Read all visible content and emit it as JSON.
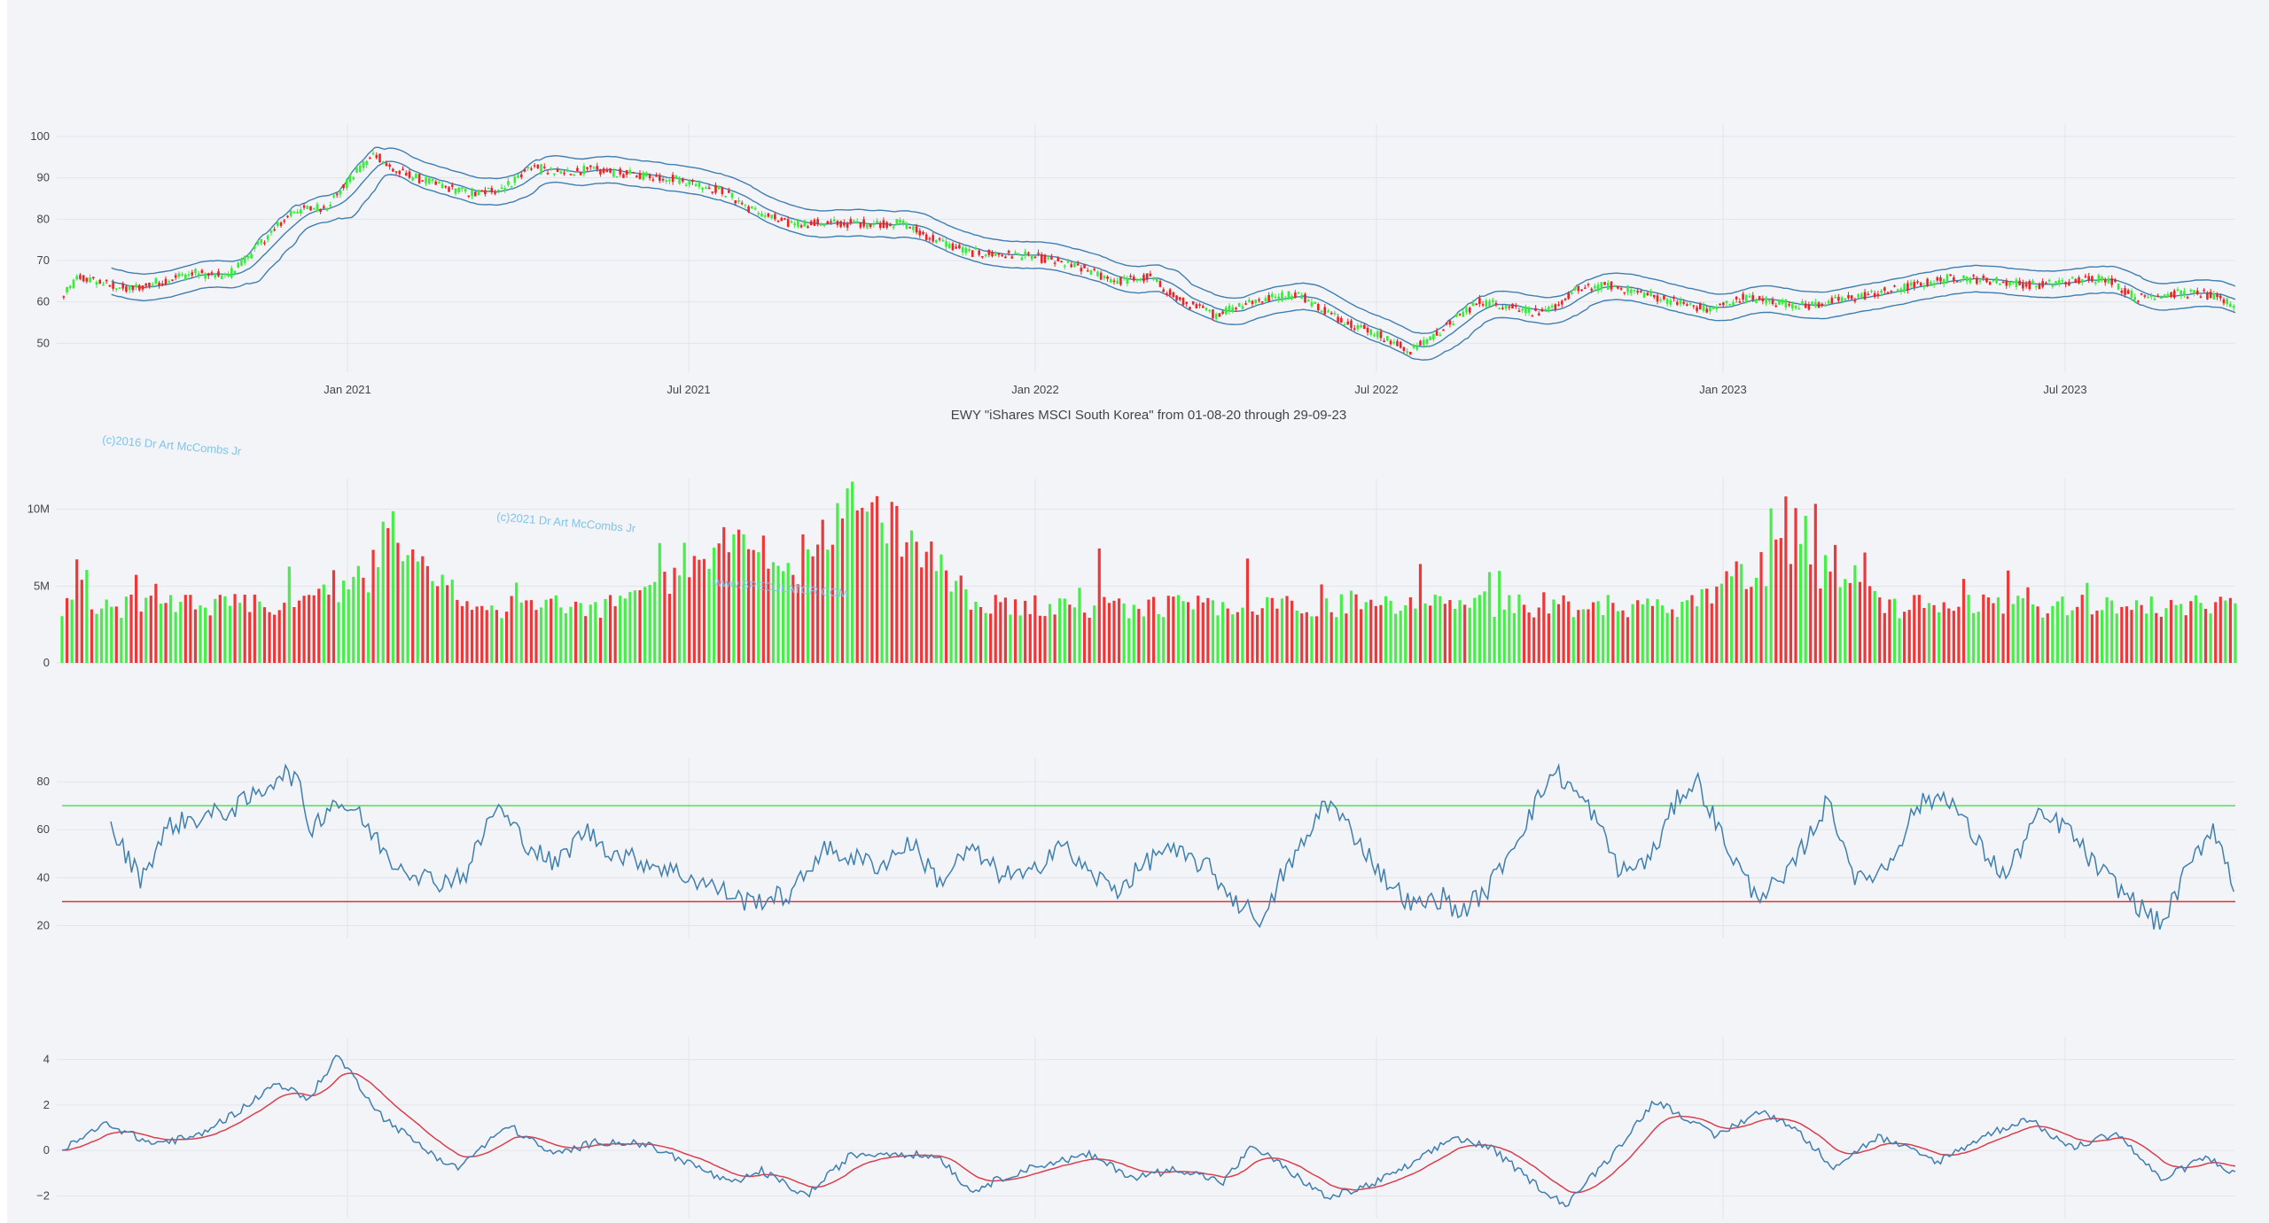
{
  "title": "EWY \"iShares MSCI South Korea\" from 01-08-20 through 29-09-23",
  "watermarks": [
    "(c)2016 Dr Art McCombs Jr",
    "(c)2021 Dr Art McCombs Jr",
    "www.SPECULATOR.COM"
  ],
  "colors": {
    "up": "#33ee33",
    "down": "#ee2222",
    "line": "#3f7fb0",
    "signal": "#d84050",
    "overbought": "#55dd55",
    "oversold": "#dd3333",
    "grid": "#e2e5ea",
    "panel_bg": "#f3f4f8"
  },
  "chart_data": [
    {
      "type": "candlestick",
      "name": "price",
      "x_ticks": [
        "Jan 2021",
        "Jul 2021",
        "Jan 2022",
        "Jul 2022",
        "Jan 2023",
        "Jul 2023"
      ],
      "y_ticks": [
        "100",
        "90",
        "80",
        "70",
        "60",
        "50"
      ],
      "ylim": [
        43,
        103
      ],
      "overlays": [
        "bollinger upper",
        "bollinger middle",
        "bollinger lower"
      ],
      "price_path": [
        [
          0,
          61
        ],
        [
          10,
          66
        ],
        [
          40,
          63
        ],
        [
          80,
          67
        ],
        [
          100,
          66
        ],
        [
          120,
          74
        ],
        [
          140,
          82
        ],
        [
          160,
          83
        ],
        [
          180,
          92
        ],
        [
          190,
          96
        ],
        [
          200,
          92
        ],
        [
          215,
          90
        ],
        [
          230,
          88
        ],
        [
          250,
          86
        ],
        [
          270,
          88
        ],
        [
          285,
          93
        ],
        [
          300,
          91
        ],
        [
          320,
          92
        ],
        [
          340,
          91
        ],
        [
          370,
          90
        ],
        [
          400,
          87
        ],
        [
          420,
          82
        ],
        [
          440,
          79
        ],
        [
          480,
          79
        ],
        [
          510,
          79
        ],
        [
          530,
          75
        ],
        [
          550,
          72
        ],
        [
          590,
          71
        ],
        [
          620,
          68
        ],
        [
          640,
          65
        ],
        [
          660,
          66
        ],
        [
          680,
          60
        ],
        [
          700,
          57
        ],
        [
          720,
          60
        ],
        [
          750,
          62
        ],
        [
          770,
          57
        ],
        [
          800,
          52
        ],
        [
          818,
          48
        ],
        [
          830,
          51
        ],
        [
          860,
          60
        ],
        [
          880,
          59
        ],
        [
          900,
          57
        ],
        [
          920,
          63
        ],
        [
          940,
          64
        ],
        [
          980,
          60
        ],
        [
          1000,
          58
        ],
        [
          1020,
          61
        ],
        [
          1060,
          59
        ],
        [
          1100,
          62
        ],
        [
          1150,
          66
        ],
        [
          1200,
          64
        ],
        [
          1240,
          66
        ],
        [
          1260,
          61
        ],
        [
          1280,
          62
        ],
        [
          1300,
          62
        ],
        [
          1320,
          59
        ]
      ]
    },
    {
      "type": "bar",
      "name": "volume",
      "y_ticks": [
        "10M",
        "5M",
        "0"
      ],
      "ylim": [
        0,
        12000000
      ],
      "peaks": [
        [
          200,
          8.2
        ],
        [
          400,
          9.4
        ],
        [
          480,
          8.3
        ],
        [
          500,
          8.8
        ],
        [
          1050,
          9.9
        ]
      ],
      "base": 3.5
    },
    {
      "type": "line",
      "name": "rsi",
      "y_ticks": [
        "80",
        "60",
        "40",
        "20"
      ],
      "ylim": [
        15,
        90
      ],
      "levels": [
        70,
        30
      ],
      "path": [
        [
          0,
          60
        ],
        [
          20,
          40
        ],
        [
          40,
          62
        ],
        [
          60,
          65
        ],
        [
          80,
          68
        ],
        [
          100,
          75
        ],
        [
          115,
          84
        ],
        [
          125,
          82
        ],
        [
          135,
          60
        ],
        [
          150,
          72
        ],
        [
          165,
          68
        ],
        [
          190,
          47
        ],
        [
          220,
          38
        ],
        [
          240,
          42
        ],
        [
          260,
          70
        ],
        [
          280,
          55
        ],
        [
          300,
          45
        ],
        [
          320,
          60
        ],
        [
          340,
          50
        ],
        [
          370,
          45
        ],
        [
          400,
          38
        ],
        [
          430,
          30
        ],
        [
          460,
          33
        ],
        [
          480,
          52
        ],
        [
          520,
          45
        ],
        [
          540,
          55
        ],
        [
          560,
          38
        ],
        [
          580,
          52
        ],
        [
          600,
          42
        ],
        [
          620,
          40
        ],
        [
          640,
          55
        ],
        [
          660,
          42
        ],
        [
          680,
          35
        ],
        [
          710,
          52
        ],
        [
          740,
          45
        ],
        [
          760,
          30
        ],
        [
          780,
          22
        ],
        [
          790,
          40
        ],
        [
          810,
          58
        ],
        [
          820,
          73
        ],
        [
          840,
          58
        ],
        [
          860,
          40
        ],
        [
          880,
          28
        ],
        [
          900,
          32
        ],
        [
          910,
          25
        ],
        [
          930,
          35
        ],
        [
          960,
          68
        ],
        [
          975,
          85
        ],
        [
          1000,
          68
        ],
        [
          1020,
          42
        ],
        [
          1040,
          48
        ],
        [
          1060,
          75
        ],
        [
          1072,
          80
        ],
        [
          1090,
          55
        ],
        [
          1110,
          33
        ],
        [
          1130,
          38
        ],
        [
          1160,
          72
        ],
        [
          1180,
          38
        ],
        [
          1200,
          45
        ],
        [
          1220,
          70
        ],
        [
          1240,
          75
        ],
        [
          1260,
          55
        ],
        [
          1280,
          40
        ],
        [
          1300,
          65
        ],
        [
          1320,
          62
        ],
        [
          1340,
          45
        ],
        [
          1370,
          28
        ],
        [
          1385,
          20
        ],
        [
          1400,
          40
        ],
        [
          1420,
          62
        ],
        [
          1435,
          35
        ]
      ]
    },
    {
      "type": "line",
      "name": "macd",
      "y_ticks": [
        "4",
        "2",
        "0",
        "−2"
      ],
      "ylim": [
        -3,
        5
      ],
      "series": [
        "macd",
        "signal"
      ],
      "path": [
        [
          0,
          0
        ],
        [
          30,
          1.2
        ],
        [
          60,
          0.3
        ],
        [
          90,
          0.6
        ],
        [
          120,
          1.8
        ],
        [
          145,
          3.0
        ],
        [
          165,
          2.2
        ],
        [
          185,
          4.2
        ],
        [
          215,
          1.5
        ],
        [
          245,
          0
        ],
        [
          265,
          -0.8
        ],
        [
          300,
          1.1
        ],
        [
          330,
          -0.2
        ],
        [
          360,
          0.4
        ],
        [
          390,
          0.3
        ],
        [
          420,
          -0.5
        ],
        [
          450,
          -1.5
        ],
        [
          470,
          -0.9
        ],
        [
          500,
          -2.0
        ],
        [
          530,
          -0.2
        ],
        [
          560,
          -0.1
        ],
        [
          590,
          -0.3
        ],
        [
          610,
          -1.8
        ],
        [
          640,
          -1.0
        ],
        [
          660,
          -0.6
        ],
        [
          690,
          -0.2
        ],
        [
          720,
          -1.2
        ],
        [
          750,
          -0.8
        ],
        [
          780,
          -1.4
        ],
        [
          800,
          0.2
        ],
        [
          820,
          -0.7
        ],
        [
          850,
          -2.1
        ],
        [
          880,
          -1.5
        ],
        [
          910,
          -0.5
        ],
        [
          935,
          0.6
        ],
        [
          960,
          0.1
        ],
        [
          990,
          -1.5
        ],
        [
          1010,
          -2.4
        ],
        [
          1040,
          -0.3
        ],
        [
          1070,
          2.2
        ],
        [
          1090,
          1.5
        ],
        [
          1110,
          0.6
        ],
        [
          1140,
          1.7
        ],
        [
          1160,
          1.2
        ],
        [
          1190,
          -0.7
        ],
        [
          1220,
          0.6
        ],
        [
          1260,
          -0.5
        ],
        [
          1290,
          0.6
        ],
        [
          1320,
          1.4
        ],
        [
          1350,
          0.1
        ],
        [
          1380,
          0.8
        ],
        [
          1410,
          -1.3
        ],
        [
          1440,
          -0.3
        ],
        [
          1460,
          -1.0
        ]
      ]
    }
  ]
}
